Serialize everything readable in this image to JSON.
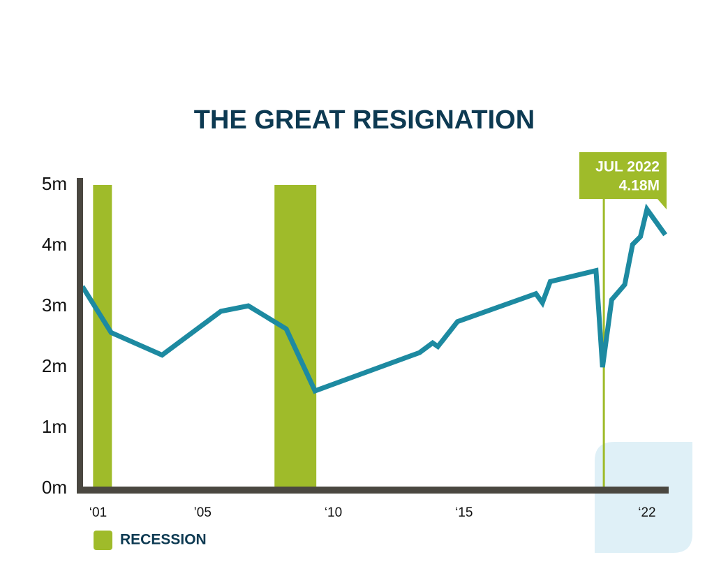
{
  "chart_data": {
    "type": "line",
    "title": "THE GREAT RESIGNATION",
    "xlim": [
      2000.4,
      2022.75
    ],
    "xticks": [
      {
        "value": 2001,
        "label": "‘01"
      },
      {
        "value": 2005,
        "label": "’05"
      },
      {
        "value": 2010,
        "label": "‘10"
      },
      {
        "value": 2015,
        "label": "‘15"
      },
      {
        "value": 2022,
        "label": "‘22"
      }
    ],
    "ylim": [
      0,
      5
    ],
    "yticks": [
      {
        "value": 0,
        "label": "0m"
      },
      {
        "value": 1,
        "label": "1m"
      },
      {
        "value": 2,
        "label": "2m"
      },
      {
        "value": 3,
        "label": "3m"
      },
      {
        "value": 4,
        "label": "4m"
      },
      {
        "value": 5,
        "label": "5m"
      }
    ],
    "series": [
      {
        "color": "#1d8aa1",
        "x": [
          2000.4,
          2001.5,
          2003.45,
          2005.7,
          2006.75,
          2008.2,
          2009.3,
          2013.3,
          2013.8,
          2014.0,
          2014.75,
          2017.75,
          2018.0,
          2018.3,
          2020.05,
          2020.3,
          2020.65,
          2021.15,
          2021.45,
          2021.75,
          2022.0,
          2022.7
        ],
        "values": [
          3.33,
          2.57,
          2.2,
          2.92,
          3.01,
          2.63,
          1.61,
          2.24,
          2.4,
          2.34,
          2.75,
          3.21,
          3.06,
          3.41,
          3.59,
          2.0,
          3.11,
          3.36,
          4.02,
          4.15,
          4.6,
          4.18
        ]
      }
    ],
    "bands": {
      "name": "RECESSION",
      "color": "#9fbb2a",
      "ranges": [
        [
          2000.81,
          2001.53
        ],
        [
          2007.75,
          2009.35
        ]
      ]
    },
    "annotation": {
      "x": 2020.35,
      "lines": [
        "JUL 2022",
        "4.18M"
      ],
      "color": "#9fbb2a"
    }
  }
}
